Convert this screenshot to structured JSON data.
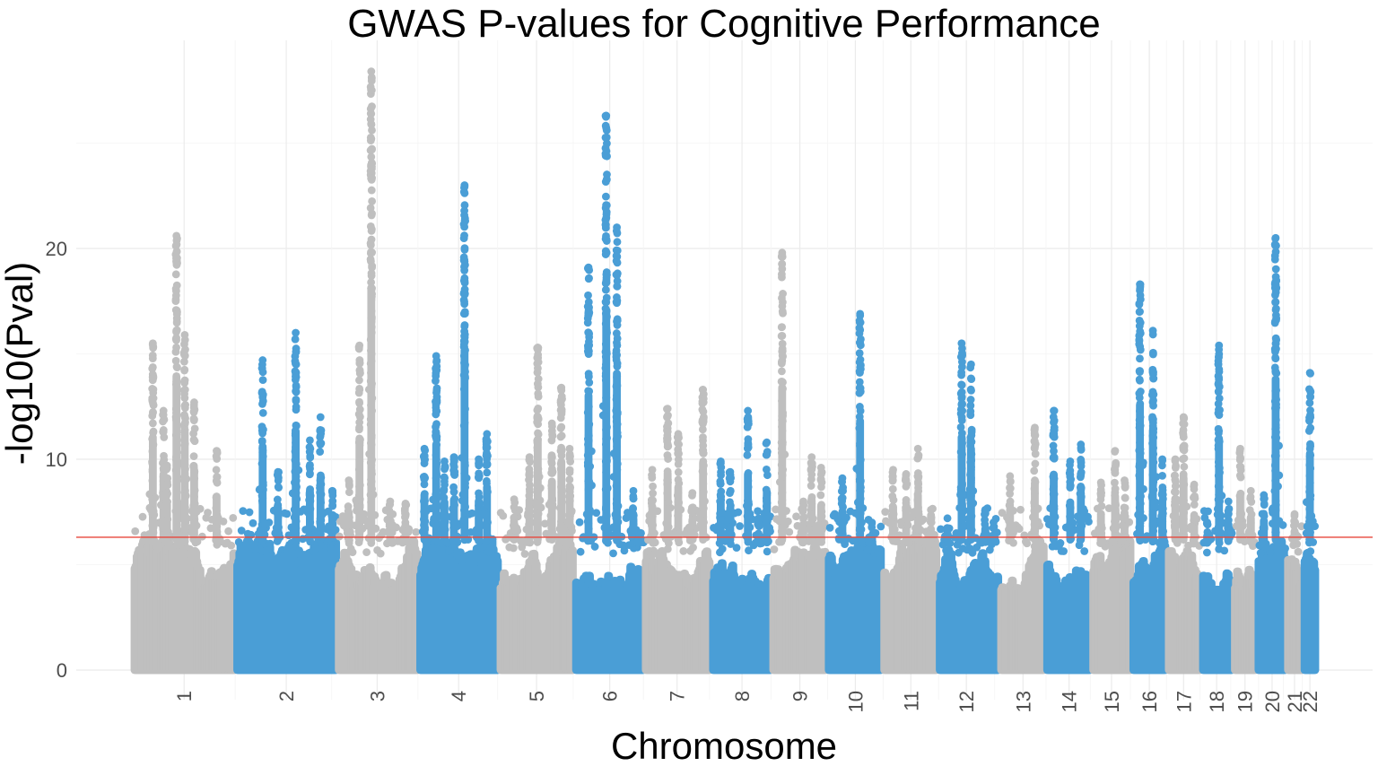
{
  "chart_data": {
    "type": "scatter",
    "subtype": "manhattan",
    "title": "GWAS P-values for Cognitive Performance",
    "xlabel": "Chromosome",
    "ylabel": "-log10(Pval)",
    "ylim": [
      0,
      28.5
    ],
    "yticks": [
      0,
      10,
      20
    ],
    "x_tick_rotation": -90,
    "grid": true,
    "legend": "none",
    "threshold": {
      "value": 6.3,
      "color": "#e8473c"
    },
    "colors": {
      "grey": "#bfbfbf",
      "blue": "#4a9ed6"
    },
    "chromosomes": [
      {
        "label": "1",
        "span": [
          0,
          8.7
        ],
        "tick": 4.35,
        "color": "grey",
        "max_logp": 20.6,
        "peaks": [
          [
            1.7,
            15.5
          ],
          [
            2.6,
            12.3
          ],
          [
            2.9,
            9.7
          ],
          [
            3.7,
            20.6
          ],
          [
            4.4,
            15.9
          ],
          [
            5.2,
            12.7
          ],
          [
            7.1,
            10.4
          ]
        ]
      },
      {
        "label": "2",
        "span": [
          8.7,
          17.3
        ],
        "tick": 13.0,
        "color": "blue",
        "max_logp": 16.0,
        "peaks": [
          [
            11.0,
            14.7
          ],
          [
            12.3,
            9.4
          ],
          [
            13.8,
            16.0
          ],
          [
            15.0,
            10.9
          ],
          [
            15.9,
            12.0
          ],
          [
            16.9,
            8.5
          ]
        ]
      },
      {
        "label": "3",
        "span": [
          17.3,
          24.2
        ],
        "tick": 20.7,
        "color": "grey",
        "max_logp": 28.4,
        "peaks": [
          [
            18.3,
            9.0
          ],
          [
            19.2,
            15.4
          ],
          [
            20.2,
            28.4
          ],
          [
            21.8,
            8.0
          ],
          [
            23.1,
            7.9
          ]
        ]
      },
      {
        "label": "4",
        "span": [
          24.2,
          31.0
        ],
        "tick": 27.6,
        "color": "blue",
        "max_logp": 23.0,
        "peaks": [
          [
            24.7,
            10.5
          ],
          [
            25.7,
            14.9
          ],
          [
            26.4,
            9.9
          ],
          [
            27.2,
            10.1
          ],
          [
            28.1,
            23.0
          ],
          [
            29.3,
            10.0
          ],
          [
            30.0,
            11.2
          ]
        ]
      },
      {
        "label": "5",
        "span": [
          31.0,
          37.4
        ],
        "tick": 34.2,
        "color": "grey",
        "max_logp": 15.3,
        "peaks": [
          [
            32.3,
            8.1
          ],
          [
            33.6,
            10.1
          ],
          [
            34.3,
            15.3
          ],
          [
            35.5,
            11.7
          ],
          [
            36.3,
            13.4
          ],
          [
            37.0,
            10.5
          ]
        ]
      },
      {
        "label": "6",
        "span": [
          37.4,
          43.3
        ],
        "tick": 40.4,
        "color": "blue",
        "max_logp": 26.3,
        "peaks": [
          [
            38.6,
            19.1
          ],
          [
            40.1,
            26.3
          ],
          [
            41.0,
            21.0
          ],
          [
            42.4,
            8.5
          ],
          [
            43.0,
            6.5
          ]
        ]
      },
      {
        "label": "7",
        "span": [
          43.3,
          49.0
        ],
        "tick": 46.1,
        "color": "grey",
        "max_logp": 13.3,
        "peaks": [
          [
            44.0,
            9.5
          ],
          [
            45.3,
            12.4
          ],
          [
            46.2,
            11.2
          ],
          [
            47.4,
            8.4
          ],
          [
            48.3,
            13.3
          ]
        ]
      },
      {
        "label": "8",
        "span": [
          49.0,
          54.1
        ],
        "tick": 51.6,
        "color": "blue",
        "max_logp": 12.3,
        "peaks": [
          [
            49.8,
            9.9
          ],
          [
            50.6,
            9.4
          ],
          [
            52.1,
            12.3
          ],
          [
            53.0,
            7.2
          ],
          [
            53.7,
            10.8
          ]
        ]
      },
      {
        "label": "9",
        "span": [
          54.1,
          58.8
        ],
        "tick": 56.5,
        "color": "grey",
        "max_logp": 19.8,
        "peaks": [
          [
            55.0,
            19.8
          ],
          [
            56.8,
            8.0
          ],
          [
            57.5,
            10.1
          ],
          [
            58.3,
            9.6
          ]
        ]
      },
      {
        "label": "10",
        "span": [
          58.8,
          63.5
        ],
        "tick": 61.2,
        "color": "blue",
        "max_logp": 16.9,
        "peaks": [
          [
            60.1,
            9.1
          ],
          [
            61.6,
            16.9
          ],
          [
            62.6,
            7.0
          ]
        ]
      },
      {
        "label": "11",
        "span": [
          63.5,
          68.2
        ],
        "tick": 65.9,
        "color": "grey",
        "max_logp": 10.5,
        "peaks": [
          [
            64.4,
            9.5
          ],
          [
            65.5,
            9.3
          ],
          [
            66.5,
            10.5
          ],
          [
            67.6,
            7.6
          ]
        ]
      },
      {
        "label": "12",
        "span": [
          68.2,
          73.4
        ],
        "tick": 70.6,
        "color": "blue",
        "max_logp": 15.5,
        "peaks": [
          [
            69.0,
            7.2
          ],
          [
            70.2,
            15.5
          ],
          [
            71.0,
            14.5
          ],
          [
            72.2,
            7.6
          ],
          [
            72.9,
            7.0
          ]
        ]
      },
      {
        "label": "13",
        "span": [
          73.4,
          77.3
        ],
        "tick": 75.4,
        "color": "grey",
        "max_logp": 11.5,
        "peaks": [
          [
            74.3,
            9.2
          ],
          [
            76.4,
            11.5
          ]
        ]
      },
      {
        "label": "14",
        "span": [
          77.3,
          81.2
        ],
        "tick": 79.3,
        "color": "blue",
        "max_logp": 12.3,
        "peaks": [
          [
            78.0,
            12.3
          ],
          [
            79.4,
            9.9
          ],
          [
            80.3,
            10.7
          ]
        ]
      },
      {
        "label": "15",
        "span": [
          81.2,
          84.6
        ],
        "tick": 82.9,
        "color": "grey",
        "max_logp": 10.4,
        "peaks": [
          [
            82.0,
            8.9
          ],
          [
            83.2,
            10.4
          ],
          [
            84.0,
            9.0
          ]
        ]
      },
      {
        "label": "16",
        "span": [
          84.6,
          87.6
        ],
        "tick": 86.1,
        "color": "blue",
        "max_logp": 18.3,
        "peaks": [
          [
            85.3,
            18.3
          ],
          [
            86.4,
            16.1
          ],
          [
            87.2,
            10.0
          ]
        ]
      },
      {
        "label": "17",
        "span": [
          87.6,
          90.5
        ],
        "tick": 89.0,
        "color": "grey",
        "max_logp": 12.0,
        "peaks": [
          [
            88.3,
            10.0
          ],
          [
            89.0,
            12.0
          ],
          [
            89.9,
            8.8
          ]
        ]
      },
      {
        "label": "18",
        "span": [
          90.5,
          93.2
        ],
        "tick": 91.8,
        "color": "blue",
        "max_logp": 15.4,
        "peaks": [
          [
            91.0,
            7.0
          ],
          [
            92.0,
            15.4
          ],
          [
            92.8,
            8.0
          ]
        ]
      },
      {
        "label": "19",
        "span": [
          93.2,
          95.2
        ],
        "tick": 94.2,
        "color": "grey",
        "max_logp": 10.5,
        "peaks": [
          [
            93.8,
            10.5
          ],
          [
            94.7,
            8.5
          ]
        ]
      },
      {
        "label": "20",
        "span": [
          95.2,
          97.7
        ],
        "tick": 96.5,
        "color": "blue",
        "max_logp": 20.5,
        "peaks": [
          [
            95.8,
            8.3
          ],
          [
            96.8,
            20.5
          ]
        ]
      },
      {
        "label": "21",
        "span": [
          97.7,
          99.1
        ],
        "tick": 98.4,
        "color": "grey",
        "max_logp": 7.4,
        "peaks": [
          [
            98.4,
            7.4
          ]
        ]
      },
      {
        "label": "22",
        "span": [
          99.1,
          100.3
        ],
        "tick": 99.7,
        "color": "blue",
        "max_logp": 14.1,
        "peaks": [
          [
            99.7,
            14.1
          ]
        ]
      }
    ]
  }
}
